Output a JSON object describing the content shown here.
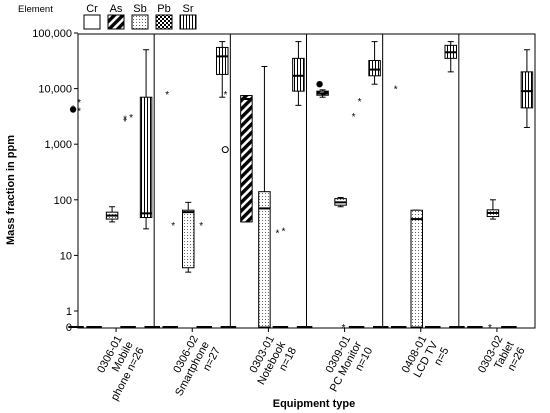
{
  "chart_data": {
    "type": "boxplot",
    "title": "",
    "xlabel": "Equipment type",
    "ylabel": "Mass fraction in ppm",
    "y_scale": "log (with 0 baseline)",
    "ylim": [
      0,
      100000
    ],
    "y_ticks": [
      {
        "value": 0,
        "label": "0"
      },
      {
        "value": 1,
        "label": "1"
      },
      {
        "value": 10,
        "label": "10"
      },
      {
        "value": 100,
        "label": "100"
      },
      {
        "value": 1000,
        "label": "1,000"
      },
      {
        "value": 10000,
        "label": "10,000"
      },
      {
        "value": 100000,
        "label": "100,000"
      }
    ],
    "legend": {
      "title": "Element",
      "placement": "top-left",
      "items": [
        {
          "name": "Cr",
          "pattern": "plain"
        },
        {
          "name": "As",
          "pattern": "diagonal"
        },
        {
          "name": "Sb",
          "pattern": "dots"
        },
        {
          "name": "Pb",
          "pattern": "checker"
        },
        {
          "name": "Sr",
          "pattern": "vertical"
        }
      ]
    },
    "groups": [
      {
        "label_lines": [
          "0306-01",
          "Mobile",
          "phone n=26"
        ],
        "boxes": [
          {
            "element": "Cr",
            "min": 0,
            "q1": 0,
            "median": 0,
            "q3": 0,
            "max": 0
          },
          {
            "element": "As",
            "min": 0,
            "q1": 0,
            "median": 0,
            "q3": 0,
            "max": 0
          },
          {
            "element": "Sb",
            "min": 40,
            "q1": 45,
            "median": 52,
            "q3": 60,
            "max": 75
          },
          {
            "element": "Pb",
            "min": 0,
            "q1": 0,
            "median": 0,
            "q3": 0,
            "max": 0
          },
          {
            "element": "Sr",
            "min": 30,
            "q1": 48,
            "median": 57,
            "q3": 7000,
            "max": 50000
          }
        ],
        "outliers": [
          {
            "element": "Cr",
            "value": 4200,
            "marker": "dot"
          },
          {
            "element": "Cr",
            "value": 5800,
            "marker": "star"
          },
          {
            "element": "Cr",
            "value": 4500,
            "marker": "star"
          },
          {
            "element": "Cr",
            "value": 4000,
            "marker": "star"
          },
          {
            "element": "Pb",
            "value": 2600,
            "marker": "star"
          },
          {
            "element": "Pb",
            "value": 3100,
            "marker": "star"
          },
          {
            "element": "Pb",
            "value": 2900,
            "marker": "star"
          }
        ]
      },
      {
        "label_lines": [
          "0306-02",
          "Smartphone",
          "n=27"
        ],
        "boxes": [
          {
            "element": "Cr",
            "min": 0,
            "q1": 0,
            "median": 0,
            "q3": 0,
            "max": 0
          },
          {
            "element": "As",
            "min": 0,
            "q1": 0,
            "median": 0,
            "q3": 0,
            "max": 0
          },
          {
            "element": "Sb",
            "min": 5,
            "q1": 6,
            "median": 60,
            "q3": 65,
            "max": 90
          },
          {
            "element": "Pb",
            "min": 0,
            "q1": 0,
            "median": 0,
            "q3": 0,
            "max": 0
          },
          {
            "element": "Sr",
            "min": 7000,
            "q1": 18000,
            "median": 38000,
            "q3": 55000,
            "max": 70000
          }
        ],
        "outliers": [
          {
            "element": "As",
            "value": 8000,
            "marker": "star"
          },
          {
            "element": "As",
            "value": 35,
            "marker": "star"
          },
          {
            "element": "Pb",
            "value": 35,
            "marker": "star"
          },
          {
            "element": "Sr",
            "value": 800,
            "marker": "circle"
          }
        ]
      },
      {
        "label_lines": [
          "0303-01",
          "Notebook",
          "n=18"
        ],
        "boxes": [
          {
            "element": "Cr",
            "min": 0,
            "q1": 0,
            "median": 0,
            "q3": 0,
            "max": 0
          },
          {
            "element": "As",
            "min": 40,
            "q1": 40,
            "median": 6500,
            "q3": 7500,
            "max": 7500
          },
          {
            "element": "Sb",
            "min": 0,
            "q1": 0,
            "median": 70,
            "q3": 140,
            "max": 25000
          },
          {
            "element": "Pb",
            "min": 0,
            "q1": 0,
            "median": 0,
            "q3": 0,
            "max": 0
          },
          {
            "element": "Sr",
            "min": 5000,
            "q1": 9000,
            "median": 17000,
            "q3": 35000,
            "max": 70000
          }
        ],
        "outliers": [
          {
            "element": "Cr",
            "value": 8000,
            "marker": "star"
          },
          {
            "element": "Pb",
            "value": 28,
            "marker": "star"
          },
          {
            "element": "Pb",
            "value": 26,
            "marker": "star"
          }
        ]
      },
      {
        "label_lines": [
          "0309-01",
          "PC Monitor",
          "n=10"
        ],
        "boxes": [
          {
            "element": "Cr",
            "min": 0,
            "q1": 0,
            "median": 0,
            "q3": 0,
            "max": 0
          },
          {
            "element": "As",
            "min": 7000,
            "q1": 7600,
            "median": 8200,
            "q3": 9000,
            "max": 9500
          },
          {
            "element": "Sb",
            "min": 75,
            "q1": 80,
            "median": 90,
            "q3": 105,
            "max": 110
          },
          {
            "element": "Pb",
            "min": 0,
            "q1": 0,
            "median": 0,
            "q3": 0,
            "max": 0
          },
          {
            "element": "Sr",
            "min": 12000,
            "q1": 17000,
            "median": 22000,
            "q3": 32000,
            "max": 70000
          }
        ],
        "outliers": [
          {
            "element": "As",
            "value": 12000,
            "marker": "dot"
          },
          {
            "element": "Pb",
            "value": 6000,
            "marker": "star"
          },
          {
            "element": "Pb",
            "value": 3200,
            "marker": "star"
          },
          {
            "element": "Sb",
            "value": 0,
            "marker": "star"
          }
        ]
      },
      {
        "label_lines": [
          "0408-01",
          "LCD TV",
          "n=5"
        ],
        "boxes": [
          {
            "element": "Cr",
            "min": 0,
            "q1": 0,
            "median": 0,
            "q3": 0,
            "max": 0
          },
          {
            "element": "As",
            "min": 0,
            "q1": 0,
            "median": 0,
            "q3": 0,
            "max": 0
          },
          {
            "element": "Sb",
            "min": 0,
            "q1": 0,
            "median": 45,
            "q3": 65,
            "max": 65
          },
          {
            "element": "Pb",
            "min": 0,
            "q1": 0,
            "median": 0,
            "q3": 0,
            "max": 0
          },
          {
            "element": "Sr",
            "min": 20000,
            "q1": 35000,
            "median": 45000,
            "q3": 60000,
            "max": 70000
          }
        ],
        "outliers": [
          {
            "element": "As",
            "value": 10000,
            "marker": "star"
          }
        ]
      },
      {
        "label_lines": [
          "0303-02",
          "Tablet",
          "n=26"
        ],
        "boxes": [
          {
            "element": "Cr",
            "min": 0,
            "q1": 0,
            "median": 0,
            "q3": 0,
            "max": 0
          },
          {
            "element": "As",
            "min": 0,
            "q1": 0,
            "median": 0,
            "q3": 0,
            "max": 0
          },
          {
            "element": "Sb",
            "min": 45,
            "q1": 50,
            "median": 58,
            "q3": 66,
            "max": 100
          },
          {
            "element": "Pb",
            "min": 0,
            "q1": 0,
            "median": 0,
            "q3": 0,
            "max": 0
          },
          {
            "element": "Sr",
            "min": 2000,
            "q1": 4500,
            "median": 9000,
            "q3": 20000,
            "max": 50000
          }
        ],
        "outliers": [
          {
            "element": "Sb",
            "value": 0,
            "marker": "star"
          }
        ]
      }
    ]
  }
}
